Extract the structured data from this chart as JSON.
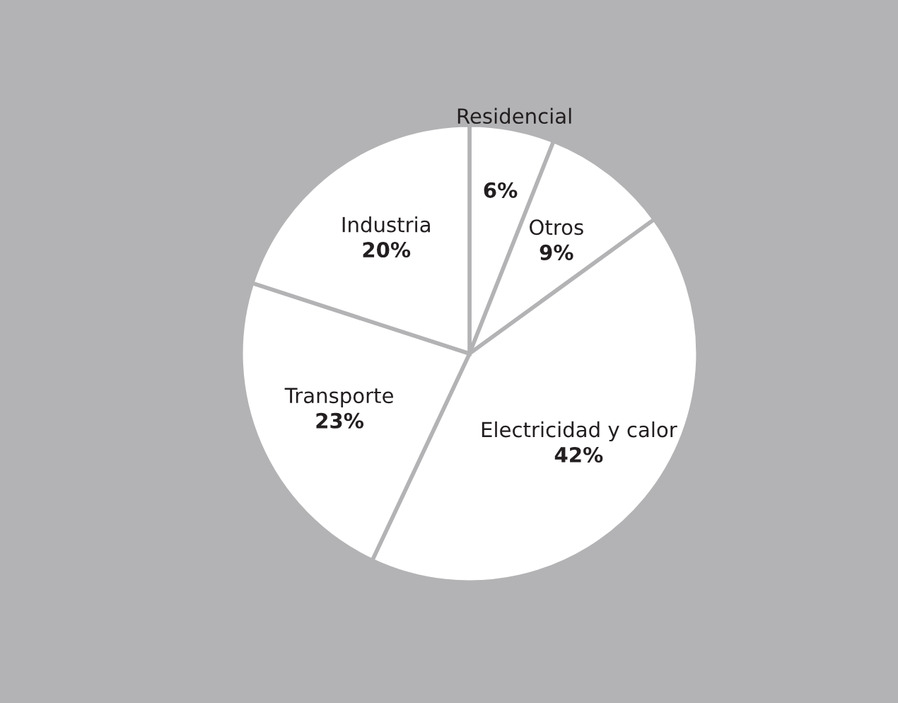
{
  "chart_data": {
    "type": "pie",
    "categories": [
      "Residencial",
      "Otros",
      "Electricidad y calor",
      "Transporte",
      "Industria"
    ],
    "values": [
      6,
      9,
      42,
      23,
      20
    ],
    "value_labels": [
      "6%",
      "9%",
      "42%",
      "23%",
      "20%"
    ],
    "colors": [
      "#ffffff",
      "#ffffff",
      "#ffffff",
      "#ffffff",
      "#ffffff"
    ],
    "legend": false
  }
}
